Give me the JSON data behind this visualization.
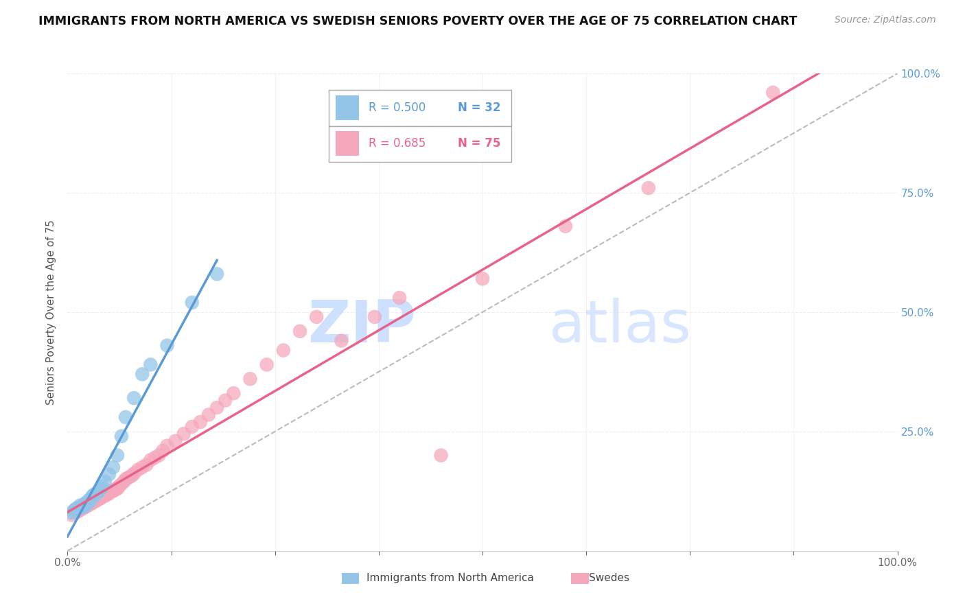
{
  "title": "IMMIGRANTS FROM NORTH AMERICA VS SWEDISH SENIORS POVERTY OVER THE AGE OF 75 CORRELATION CHART",
  "source": "Source: ZipAtlas.com",
  "ylabel": "Seniors Poverty Over the Age of 75",
  "legend_blue_r": "R = 0.500",
  "legend_blue_n": "N = 32",
  "legend_pink_r": "R = 0.685",
  "legend_pink_n": "N = 75",
  "blue_scatter_x": [
    0.005,
    0.008,
    0.01,
    0.012,
    0.015,
    0.015,
    0.018,
    0.02,
    0.02,
    0.022,
    0.025,
    0.025,
    0.027,
    0.03,
    0.03,
    0.032,
    0.035,
    0.038,
    0.04,
    0.042,
    0.045,
    0.05,
    0.055,
    0.06,
    0.065,
    0.07,
    0.08,
    0.09,
    0.1,
    0.12,
    0.15,
    0.18
  ],
  "blue_scatter_y": [
    0.08,
    0.085,
    0.088,
    0.09,
    0.09,
    0.095,
    0.095,
    0.092,
    0.098,
    0.1,
    0.1,
    0.105,
    0.108,
    0.11,
    0.115,
    0.118,
    0.12,
    0.125,
    0.13,
    0.135,
    0.145,
    0.16,
    0.175,
    0.2,
    0.24,
    0.28,
    0.32,
    0.37,
    0.39,
    0.43,
    0.52,
    0.58
  ],
  "pink_scatter_x": [
    0.005,
    0.008,
    0.01,
    0.01,
    0.012,
    0.013,
    0.015,
    0.015,
    0.017,
    0.018,
    0.02,
    0.02,
    0.022,
    0.022,
    0.025,
    0.025,
    0.027,
    0.028,
    0.03,
    0.03,
    0.032,
    0.033,
    0.035,
    0.037,
    0.038,
    0.04,
    0.04,
    0.042,
    0.043,
    0.045,
    0.048,
    0.05,
    0.05,
    0.052,
    0.055,
    0.057,
    0.06,
    0.06,
    0.062,
    0.065,
    0.068,
    0.07,
    0.072,
    0.075,
    0.078,
    0.08,
    0.085,
    0.09,
    0.095,
    0.1,
    0.105,
    0.11,
    0.115,
    0.12,
    0.13,
    0.14,
    0.15,
    0.16,
    0.17,
    0.18,
    0.19,
    0.2,
    0.22,
    0.24,
    0.26,
    0.28,
    0.3,
    0.33,
    0.37,
    0.4,
    0.45,
    0.5,
    0.6,
    0.7,
    0.85
  ],
  "pink_scatter_y": [
    0.075,
    0.08,
    0.08,
    0.082,
    0.083,
    0.085,
    0.085,
    0.088,
    0.09,
    0.09,
    0.09,
    0.092,
    0.093,
    0.095,
    0.095,
    0.098,
    0.098,
    0.1,
    0.1,
    0.102,
    0.103,
    0.105,
    0.105,
    0.108,
    0.11,
    0.11,
    0.112,
    0.113,
    0.115,
    0.115,
    0.118,
    0.12,
    0.122,
    0.125,
    0.125,
    0.128,
    0.13,
    0.132,
    0.135,
    0.14,
    0.145,
    0.15,
    0.152,
    0.155,
    0.158,
    0.162,
    0.17,
    0.175,
    0.18,
    0.19,
    0.195,
    0.2,
    0.21,
    0.22,
    0.23,
    0.245,
    0.26,
    0.27,
    0.285,
    0.3,
    0.315,
    0.33,
    0.36,
    0.39,
    0.42,
    0.46,
    0.49,
    0.44,
    0.49,
    0.53,
    0.2,
    0.57,
    0.68,
    0.76,
    0.96
  ],
  "blue_color": "#92C5E8",
  "pink_color": "#F5A8BC",
  "blue_line_color": "#5B9BD5",
  "pink_line_color": "#E8628A",
  "trendline_gray_color": "#BBBBBB",
  "background_color": "#FFFFFF",
  "grid_color": "#EEEEEE",
  "right_tick_color": "#5B9BD5",
  "x_tick_color": "#666666",
  "ylabel_color": "#555555",
  "title_color": "#111111",
  "source_color": "#999999"
}
